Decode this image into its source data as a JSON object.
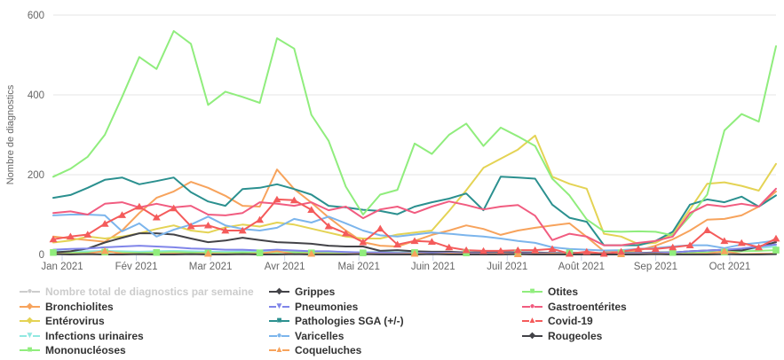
{
  "chart_data": {
    "type": "line",
    "title": "",
    "ylabel": "Nombre de diagnostics",
    "ylim": [
      0,
      600
    ],
    "yticks": [
      0,
      200,
      400,
      600
    ],
    "grid": true,
    "legend_position": "bottom",
    "x_tick_labels": [
      "Jan 2021",
      "Fév 2021",
      "Mar 2021",
      "Avr 2021",
      "Mai 2021",
      "Juin 2021",
      "Juil 2021",
      "Août 2021",
      "Sep 2021",
      "Oct 2021"
    ],
    "x_unit": "semaine",
    "points_per_series": 43,
    "series": [
      {
        "name": "Nombre total de diagnostics par semaine",
        "color": "#cccccc",
        "symbol": "circle",
        "disabled": true,
        "marker": "none",
        "values": []
      },
      {
        "name": "Bronchiolites",
        "color": "#f7a35c",
        "symbol": "diamond",
        "disabled": false,
        "marker": "none",
        "values": [
          45,
          40,
          36,
          32,
          60,
          104,
          142,
          158,
          182,
          167,
          147,
          122,
          120,
          213,
          164,
          130,
          93,
          60,
          31,
          22,
          20,
          34,
          49,
          60,
          73,
          64,
          49,
          60,
          67,
          73,
          78,
          44,
          8,
          5,
          10,
          22,
          38,
          60,
          87,
          89,
          98,
          120,
          158
        ]
      },
      {
        "name": "Entérovirus",
        "color": "#e4d354",
        "symbol": "diamond",
        "disabled": false,
        "marker": "none",
        "values": [
          30,
          35,
          45,
          40,
          45,
          53,
          64,
          73,
          60,
          55,
          68,
          75,
          70,
          80,
          75,
          65,
          55,
          45,
          40,
          40,
          50,
          55,
          60,
          109,
          161,
          217,
          240,
          263,
          298,
          195,
          177,
          165,
          52,
          45,
          26,
          29,
          52,
          113,
          177,
          181,
          172,
          160,
          227
        ]
      },
      {
        "name": "Infections urinaires",
        "color": "#91e8e1",
        "symbol": "triangle-down",
        "disabled": false,
        "marker": "none",
        "values": [
          8,
          7,
          8,
          9,
          8,
          7,
          8,
          9,
          8,
          7,
          7,
          8,
          7,
          8,
          7,
          6,
          7,
          6,
          5,
          6,
          5,
          6,
          5,
          6,
          5,
          5,
          6,
          5,
          5,
          4,
          5,
          4,
          4,
          5,
          4,
          5,
          6,
          7,
          8,
          10,
          12,
          16,
          20
        ]
      },
      {
        "name": "Mononucléoses",
        "color": "#90ed7d",
        "symbol": "square",
        "disabled": false,
        "marker": "square",
        "marker_step": 3,
        "marker_offset": 0,
        "values": [
          5,
          4,
          5,
          6,
          5,
          4,
          5,
          6,
          5,
          4,
          4,
          5,
          4,
          5,
          6,
          4,
          5,
          4,
          4,
          5,
          4,
          5,
          4,
          5,
          4,
          4,
          5,
          4,
          4,
          3,
          4,
          3,
          3,
          4,
          3,
          4,
          5,
          4,
          5,
          6,
          8,
          9,
          11
        ]
      },
      {
        "name": "Grippes",
        "color": "#434348",
        "symbol": "diamond",
        "disabled": false,
        "marker": "none",
        "values": [
          5,
          8,
          15,
          30,
          42,
          53,
          53,
          50,
          40,
          31,
          35,
          42,
          36,
          31,
          29,
          27,
          22,
          20,
          20,
          9,
          11,
          8,
          7,
          7,
          5,
          5,
          5,
          5,
          5,
          4,
          4,
          4,
          3,
          3,
          4,
          5,
          5,
          8,
          10,
          12,
          10,
          20,
          31
        ]
      },
      {
        "name": "Pneumonies",
        "color": "#8085e9",
        "symbol": "triangle-down",
        "disabled": false,
        "marker": "none",
        "values": [
          12,
          14,
          15,
          18,
          20,
          22,
          20,
          18,
          15,
          14,
          12,
          12,
          10,
          12,
          10,
          8,
          8,
          6,
          5,
          5,
          4,
          4,
          4,
          4,
          3,
          3,
          3,
          3,
          3,
          3,
          3,
          3,
          2,
          2,
          3,
          4,
          5,
          8,
          10,
          12,
          15,
          20,
          25
        ]
      },
      {
        "name": "Pathologies SGA (+/-)",
        "color": "#2b908f",
        "symbol": "square",
        "disabled": false,
        "marker": "none",
        "values": [
          142,
          149,
          167,
          187,
          193,
          176,
          184,
          193,
          156,
          133,
          122,
          164,
          167,
          176,
          164,
          150,
          122,
          118,
          112,
          109,
          101,
          120,
          131,
          140,
          153,
          111,
          195,
          193,
          190,
          125,
          92,
          82,
          23,
          23,
          23,
          34,
          57,
          125,
          138,
          131,
          145,
          120,
          148
        ]
      },
      {
        "name": "Varicelles",
        "color": "#7cb5ec",
        "symbol": "circle",
        "disabled": false,
        "marker": "none",
        "values": [
          98,
          100,
          100,
          98,
          58,
          78,
          45,
          62,
          75,
          95,
          73,
          64,
          60,
          67,
          89,
          80,
          95,
          78,
          60,
          48,
          45,
          50,
          55,
          52,
          48,
          45,
          40,
          34,
          29,
          18,
          14,
          12,
          10,
          11,
          14,
          16,
          20,
          23,
          23,
          16,
          25,
          29,
          35
        ]
      },
      {
        "name": "Coqueluches",
        "color": "#f7a35c",
        "symbol": "triangle",
        "disabled": false,
        "marker": "triangle",
        "marker_step": 6,
        "marker_offset": 3,
        "values": [
          2,
          1,
          2,
          9,
          2,
          1,
          1,
          2,
          1,
          2,
          1,
          1,
          2,
          8,
          1,
          2,
          1,
          1,
          2,
          1,
          1,
          2,
          1,
          2,
          1,
          1,
          2,
          1,
          1,
          2,
          1,
          1,
          2,
          1,
          1,
          2,
          1,
          1,
          2,
          8,
          1,
          2,
          2
        ]
      },
      {
        "name": "Otites",
        "color": "#90ed7d",
        "symbol": "square",
        "disabled": false,
        "marker": "none",
        "values": [
          195,
          215,
          245,
          300,
          395,
          495,
          465,
          560,
          528,
          375,
          408,
          395,
          380,
          542,
          516,
          350,
          285,
          170,
          100,
          150,
          162,
          278,
          252,
          300,
          328,
          272,
          318,
          296,
          272,
          190,
          148,
          88,
          58,
          57,
          58,
          57,
          48,
          96,
          150,
          311,
          352,
          333,
          522
        ]
      },
      {
        "name": "Gastroentérites",
        "color": "#f15c80",
        "symbol": "circle",
        "disabled": false,
        "marker": "none",
        "values": [
          104,
          108,
          100,
          127,
          131,
          118,
          127,
          118,
          122,
          100,
          98,
          104,
          131,
          127,
          122,
          131,
          111,
          120,
          91,
          113,
          120,
          104,
          120,
          133,
          124,
          113,
          120,
          124,
          97,
          36,
          52,
          45,
          23,
          23,
          29,
          34,
          45,
          104,
          125,
          120,
          127,
          120,
          165
        ]
      },
      {
        "name": "Covid-19",
        "color": "#f45b5b",
        "symbol": "triangle",
        "disabled": false,
        "marker": "triangle",
        "marker_step": 1,
        "marker_offset": 0,
        "values": [
          38,
          45,
          50,
          77,
          99,
          120,
          93,
          116,
          71,
          73,
          60,
          60,
          87,
          138,
          136,
          112,
          71,
          53,
          31,
          65,
          25,
          34,
          32,
          18,
          11,
          9,
          9,
          11,
          11,
          14,
          2,
          7,
          2,
          7,
          14,
          14,
          18,
          23,
          61,
          34,
          29,
          18,
          40
        ]
      },
      {
        "name": "Rougeoles",
        "color": "#434348",
        "symbol": "diamond",
        "disabled": false,
        "marker": "none",
        "values": [
          1,
          0,
          1,
          0,
          0,
          1,
          0,
          0,
          1,
          0,
          0,
          1,
          0,
          0,
          1,
          0,
          0,
          0,
          1,
          0,
          0,
          0,
          1,
          0,
          0,
          0,
          0,
          1,
          0,
          0,
          0,
          0,
          0,
          0,
          0,
          1,
          0,
          0,
          0,
          1,
          0,
          0,
          1
        ]
      }
    ]
  },
  "legend": {
    "columns": [
      [
        0,
        1,
        2,
        3,
        4
      ],
      [
        5,
        6,
        7,
        8,
        9
      ],
      [
        10,
        11,
        12,
        13
      ]
    ]
  },
  "colors": {
    "axis_label": "#666666",
    "grid_line": "#e6e6e6",
    "axis_line": "#ccd6eb",
    "legend_text": "#333333",
    "legend_disabled": "#cccccc",
    "background": "#ffffff"
  }
}
